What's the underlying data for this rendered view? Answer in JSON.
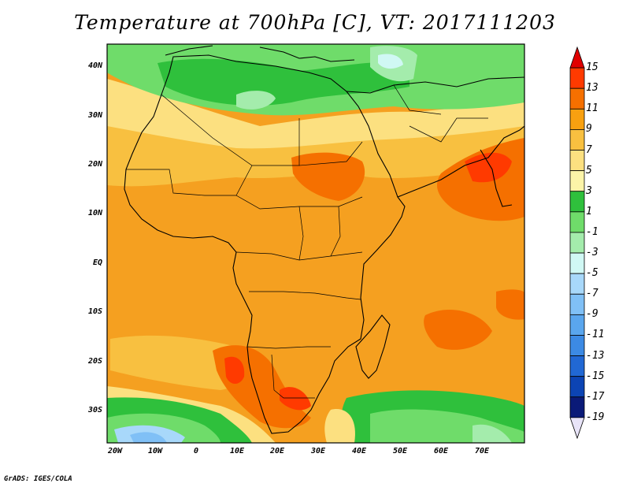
{
  "title": "Temperature at 700hPa [C], VT: 2017111203",
  "credit": "GrADS: IGES/COLA",
  "latitude_labels": [
    "40N",
    "30N",
    "20N",
    "10N",
    "EQ",
    "10S",
    "20S",
    "30S"
  ],
  "longitude_labels": [
    "20W",
    "10W",
    "0",
    "10E",
    "20E",
    "30E",
    "40E",
    "50E",
    "60E",
    "70E"
  ],
  "colorbar": {
    "levels": [
      "15",
      "13",
      "11",
      "9",
      "7",
      "5",
      "3",
      "1",
      "-1",
      "-3",
      "-5",
      "-7",
      "-9",
      "-11",
      "-13",
      "-15",
      "-17",
      "-19"
    ],
    "colors": [
      "#e00000",
      "#ff3a00",
      "#f57000",
      "#f8a010",
      "#f8c040",
      "#fce080",
      "#fcf4a8",
      "#2fc03c",
      "#6fdc6a",
      "#a4ecac",
      "#d0f8f4",
      "#a8d8fa",
      "#80c0f6",
      "#5aa6ee",
      "#3c8ae4",
      "#2168d4",
      "#0c44b4",
      "#0a1a78",
      "#000060"
    ]
  },
  "chart_data": {
    "type": "heatmap",
    "title": "Temperature at 700hPa [C], VT: 2017111203",
    "variable": "Temperature at 700hPa",
    "units": "C",
    "valid_time": "2017111203",
    "lon_range": [
      -22,
      80
    ],
    "lat_range": [
      -37,
      45
    ],
    "color_levels": [
      -19,
      -17,
      -15,
      -13,
      -11,
      -9,
      -7,
      -5,
      -3,
      -1,
      1,
      3,
      5,
      7,
      9,
      11,
      13,
      15
    ]
  }
}
